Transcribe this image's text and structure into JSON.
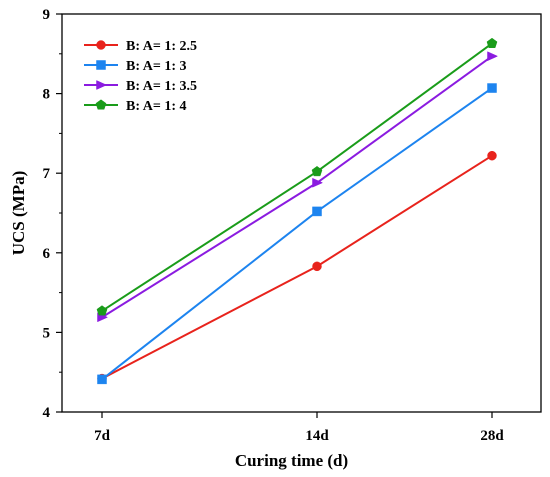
{
  "chart_data": {
    "type": "line",
    "categories": [
      "7d",
      "14d",
      "28d"
    ],
    "xlabel": "Curing time (d)",
    "ylabel": "UCS (MPa)",
    "ylim": [
      4,
      9
    ],
    "yticks": [
      4,
      5,
      6,
      7,
      8,
      9
    ],
    "grid": false,
    "legend_position": "top-left",
    "series": [
      {
        "name": "B: A= 1: 2.5",
        "color": "#e8231c",
        "marker": "circle",
        "values": [
          4.42,
          5.83,
          7.22
        ]
      },
      {
        "name": "B: A= 1: 3",
        "color": "#1d84ef",
        "marker": "square",
        "values": [
          4.41,
          6.52,
          8.07
        ]
      },
      {
        "name": "B: A= 1: 3.5",
        "color": "#8b1be0",
        "marker": "triangle-right",
        "values": [
          5.19,
          6.88,
          8.47
        ]
      },
      {
        "name": "B: A= 1: 4",
        "color": "#1a9c1a",
        "marker": "pentagon",
        "values": [
          5.27,
          7.02,
          8.63
        ]
      }
    ]
  }
}
